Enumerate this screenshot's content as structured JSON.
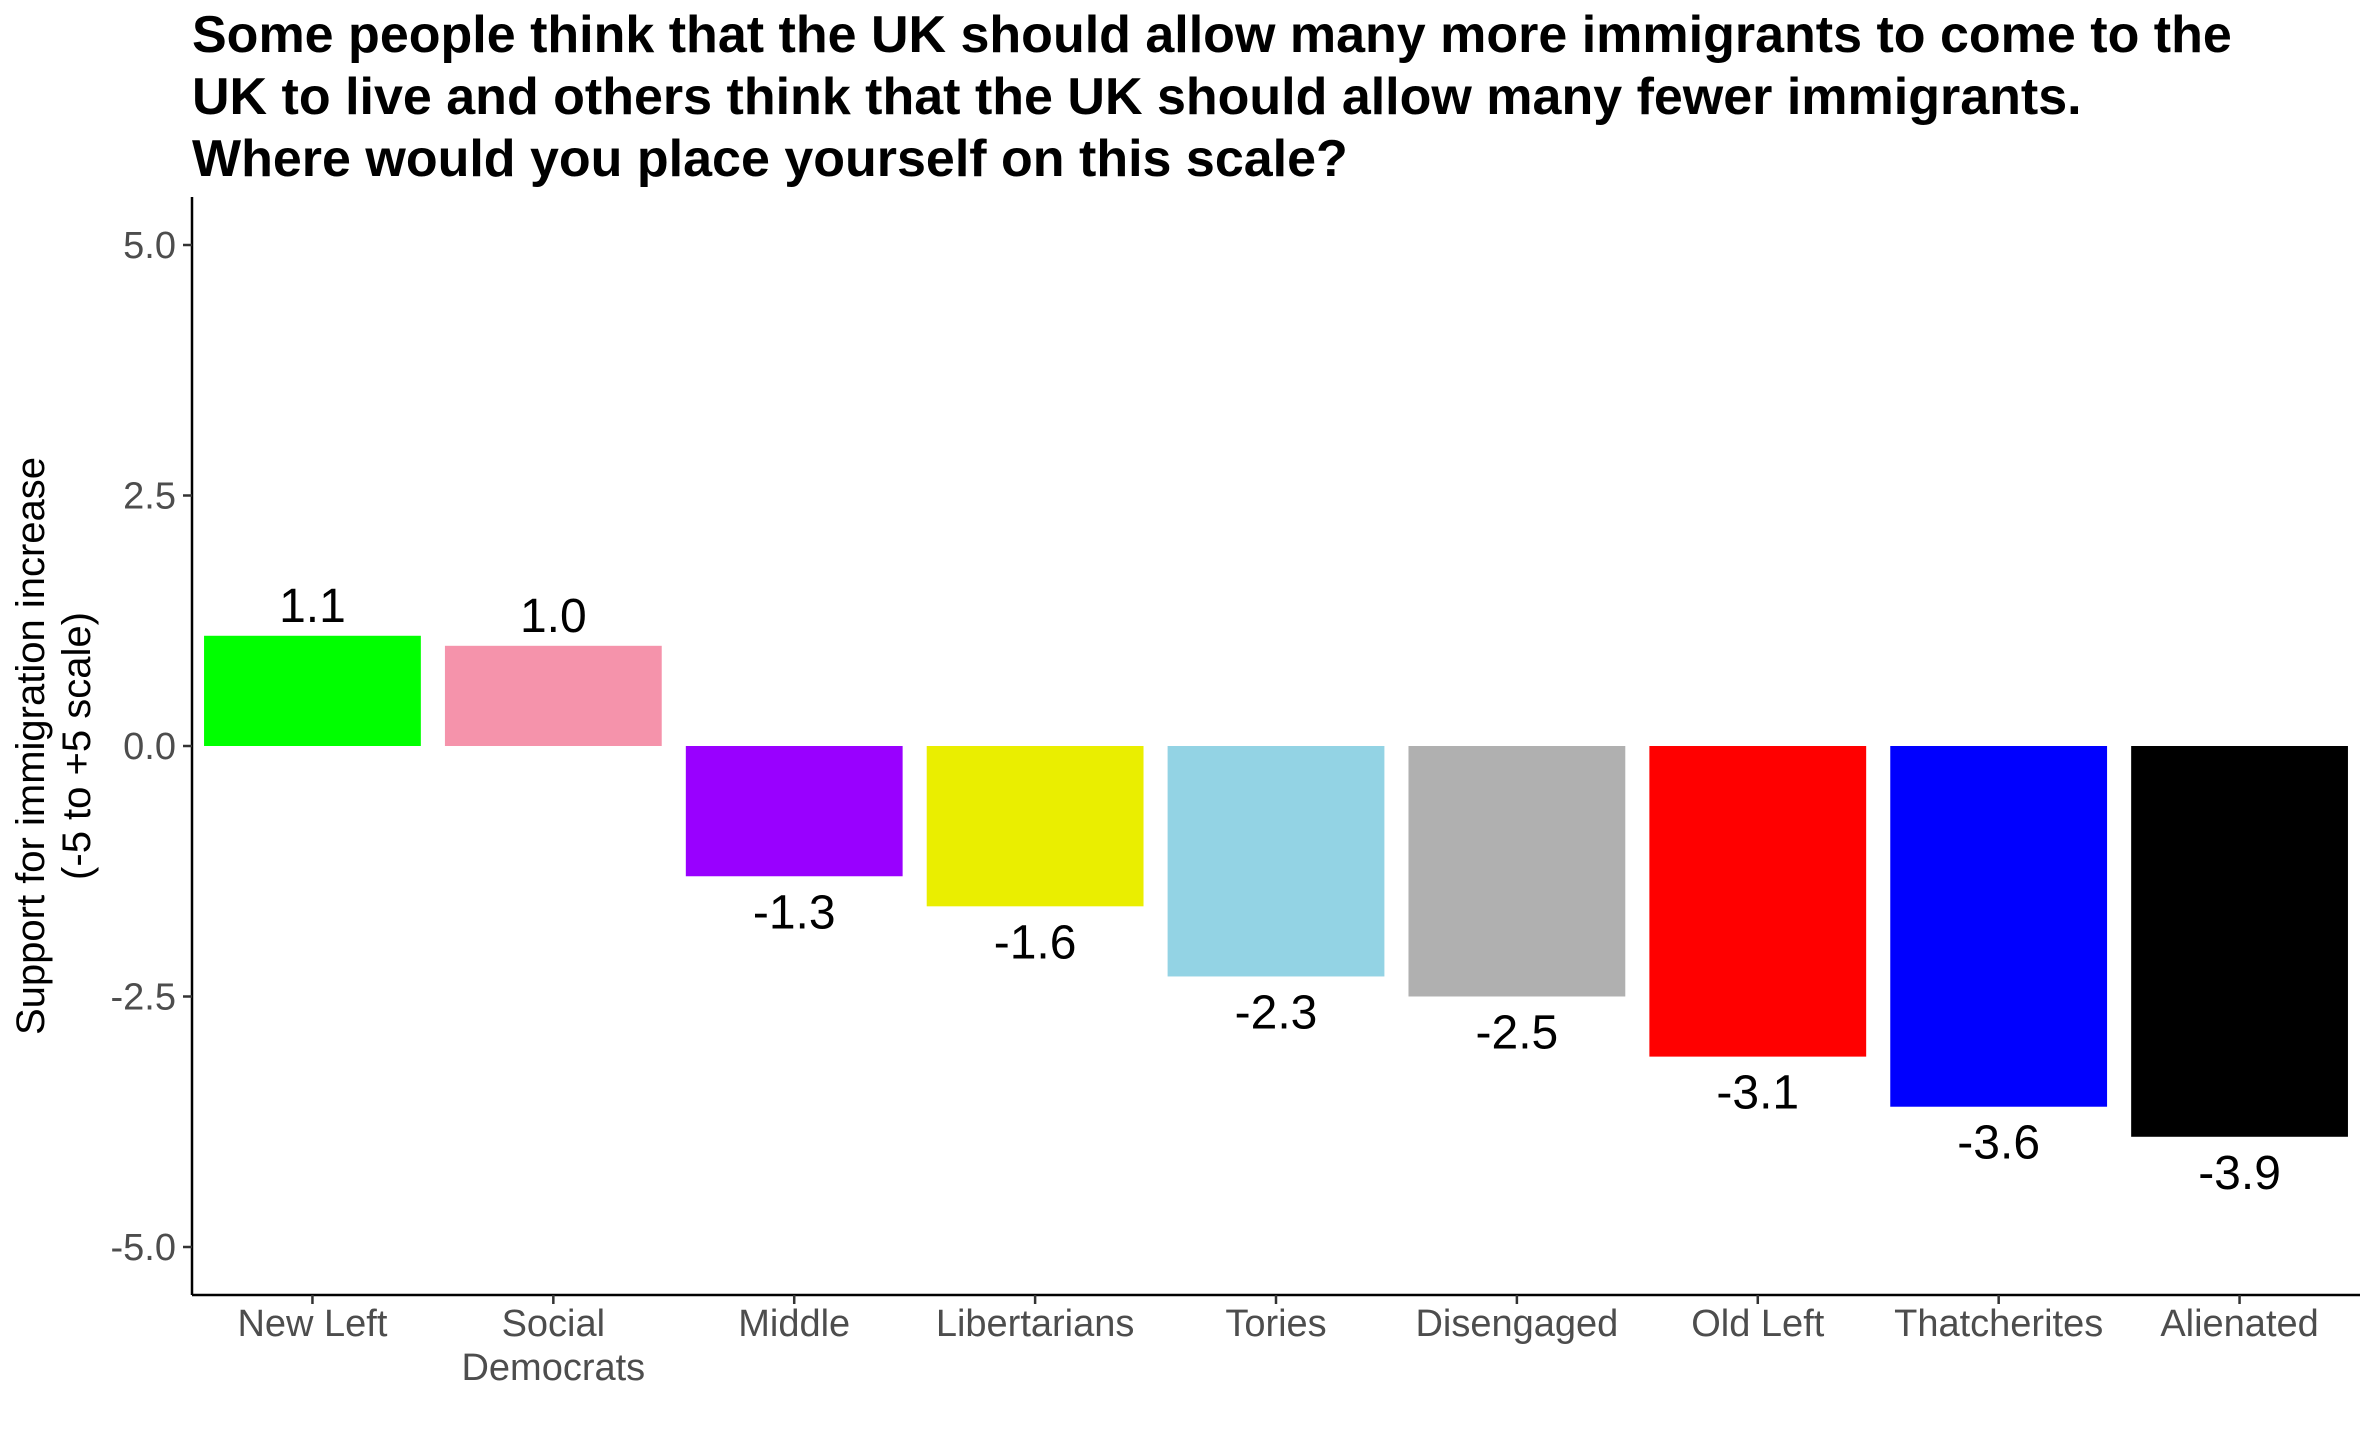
{
  "chart_data": {
    "type": "bar",
    "title": [
      "Some people think that the UK should allow many more immigrants to come to the",
      "UK to live and others think that the UK should allow many fewer immigrants.",
      "Where would you place yourself on this scale?"
    ],
    "xlabel": "",
    "ylabel": [
      "Support for immigration increase",
      "(-5 to +5 scale)"
    ],
    "ylim": [
      -5.5,
      5.5
    ],
    "yticks": [
      5.0,
      2.5,
      0.0,
      -2.5,
      -5.0
    ],
    "ytick_labels": [
      "5.0",
      "2.5",
      "0.0",
      "-2.5",
      "-5.0"
    ],
    "grid": false,
    "categories": [
      [
        "New Left"
      ],
      [
        "Social",
        "Democrats"
      ],
      [
        "Middle"
      ],
      [
        "Libertarians"
      ],
      [
        "Tories"
      ],
      [
        "Disengaged"
      ],
      [
        "Old Left"
      ],
      [
        "Thatcherites"
      ],
      [
        "Alienated"
      ]
    ],
    "values": [
      1.1,
      1.0,
      -1.3,
      -1.6,
      -2.3,
      -2.5,
      -3.1,
      -3.6,
      -3.9
    ],
    "value_labels": [
      "1.1",
      "1.0",
      "-1.3",
      "-1.6",
      "-2.3",
      "-2.5",
      "-3.1",
      "-3.6",
      "-3.9"
    ],
    "colors": [
      "#00ff00",
      "#f593ab",
      "#9900ff",
      "#eaee00",
      "#93d3e4",
      "#b0b0b0",
      "#ff0000",
      "#0000ff",
      "#000000"
    ]
  }
}
